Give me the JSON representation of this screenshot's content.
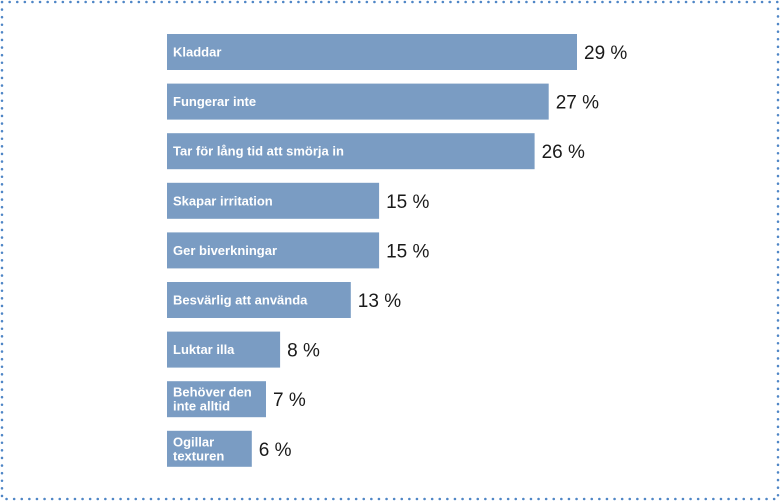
{
  "chart_data": {
    "type": "bar",
    "orientation": "horizontal",
    "bar_color": "#7a9cc3",
    "label_color": "#ffffff",
    "value_color": "#1a1a1a",
    "border_color": "#4f86c6",
    "xlim": [
      0,
      29
    ],
    "value_suffix": " %",
    "categories": [
      [
        "Kladdar"
      ],
      [
        "Fungerar inte"
      ],
      [
        "Tar för lång tid att smörja in"
      ],
      [
        "Skapar irritation"
      ],
      [
        "Ger biverkningar"
      ],
      [
        "Besvärlig att använda"
      ],
      [
        "Luktar illa"
      ],
      [
        "Behöver den",
        "inte alltid"
      ],
      [
        "Ogillar",
        "texturen"
      ]
    ],
    "values": [
      29,
      27,
      26,
      15,
      15,
      13,
      8,
      7,
      6
    ]
  }
}
